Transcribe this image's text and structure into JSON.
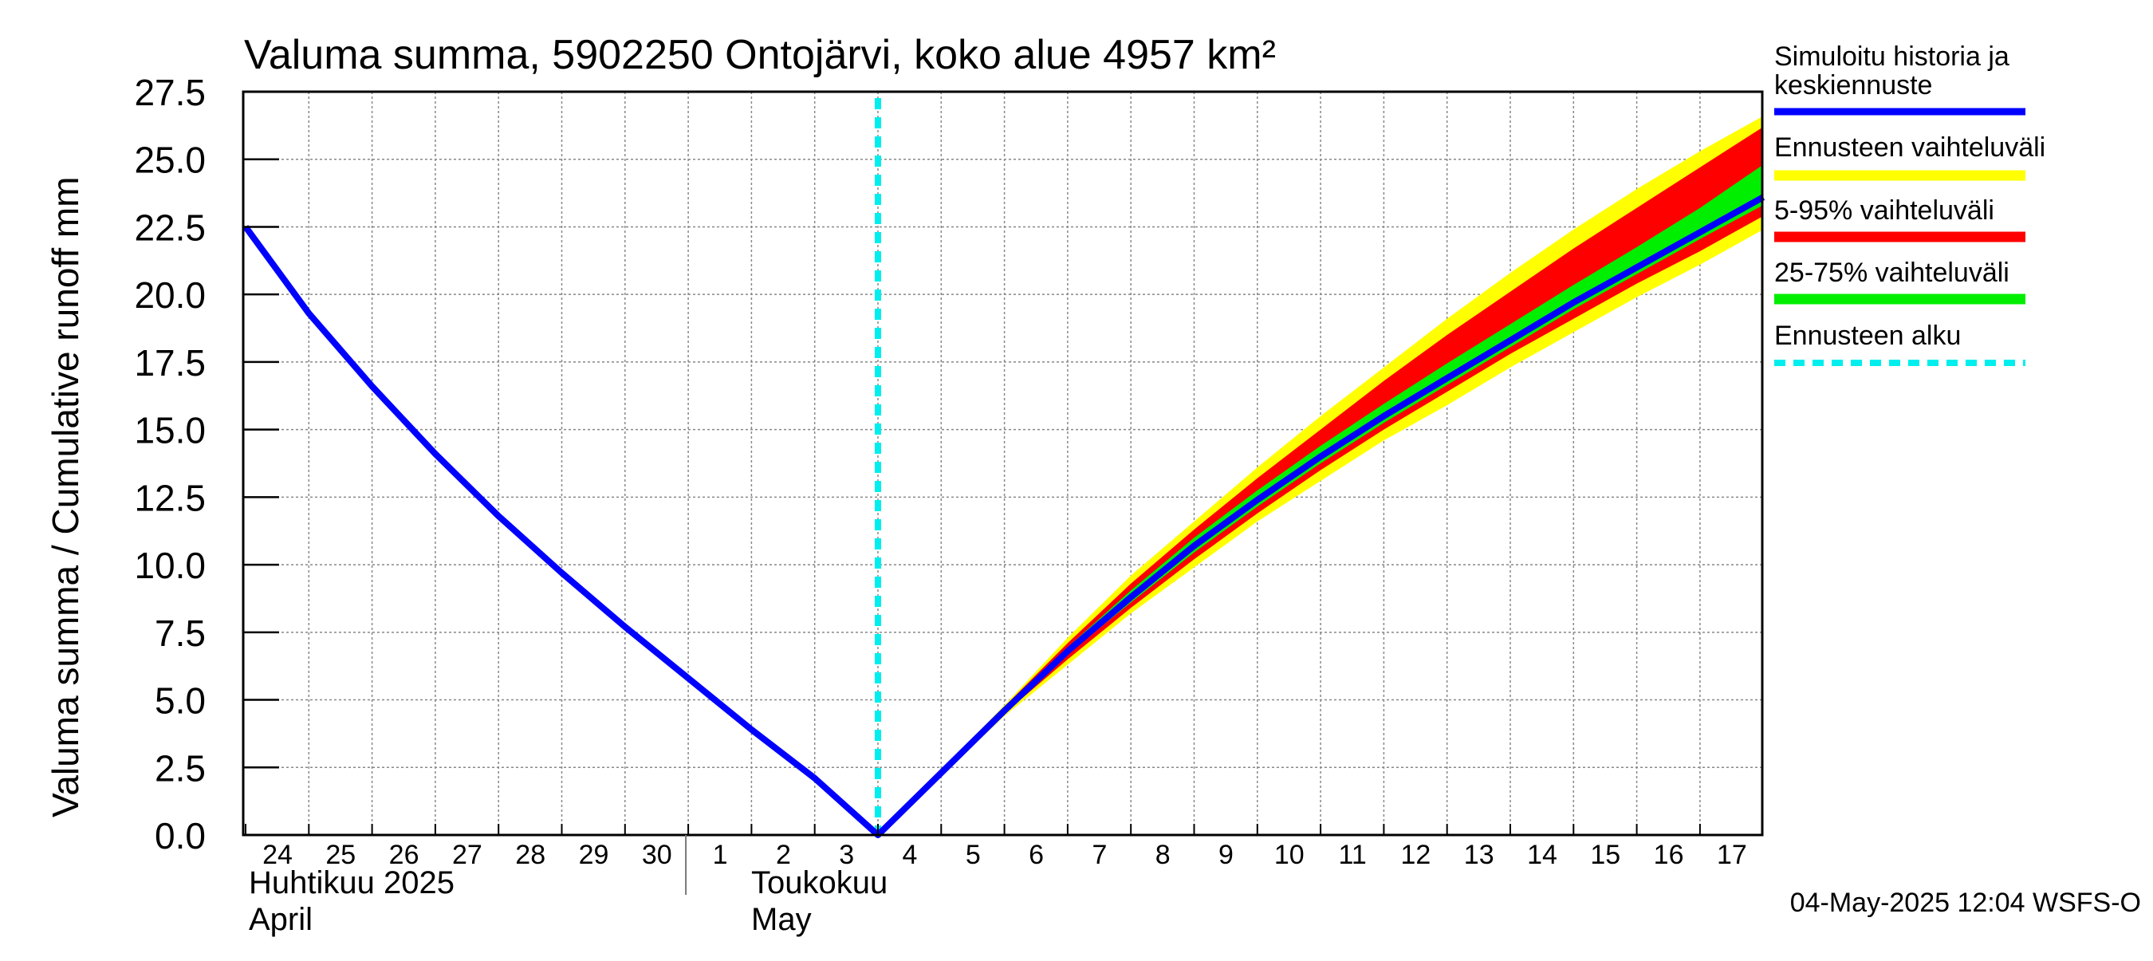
{
  "chart_data": {
    "type": "area",
    "title": "Valuma summa, 5902250 Ontojärvi, koko alue 4957 km²",
    "ylabel": "Valuma summa / Cumulative runoff    mm",
    "ylim": [
      0,
      27.5
    ],
    "yticks": [
      "0.0",
      "2.5",
      "5.0",
      "7.5",
      "10.0",
      "12.5",
      "15.0",
      "17.5",
      "20.0",
      "22.5",
      "25.0",
      "27.5"
    ],
    "x_tick_labels": [
      "24",
      "25",
      "26",
      "27",
      "28",
      "29",
      "30",
      "1",
      "2",
      "3",
      "4",
      "5",
      "6",
      "7",
      "8",
      "9",
      "10",
      "11",
      "12",
      "13",
      "14",
      "15",
      "16",
      "17"
    ],
    "month_labels": [
      {
        "fi": "Huhtikuu  2025",
        "en": "April"
      },
      {
        "fi": "Toukokuu",
        "en": "May"
      }
    ],
    "grid": true,
    "legend_position": "right",
    "forecast_start_day": 10.0,
    "history": {
      "name": "Simuloitu historia ja keskiennuste",
      "x": [
        0,
        1,
        2,
        3,
        4,
        5,
        6,
        7,
        8,
        9,
        10
      ],
      "y": [
        22.5,
        19.3,
        16.6,
        14.1,
        11.8,
        9.7,
        7.7,
        5.8,
        3.9,
        2.1,
        0.0
      ]
    },
    "forecast_x": [
      10,
      11,
      12,
      13,
      14,
      15,
      16,
      17,
      18,
      19,
      20,
      21,
      22,
      23,
      24.0
    ],
    "median": [
      0.0,
      2.3,
      4.6,
      6.8,
      8.8,
      10.7,
      12.4,
      14.0,
      15.5,
      16.9,
      18.3,
      19.7,
      21.0,
      22.3,
      23.6
    ],
    "band_minmax": {
      "name": "Ennusteen vaihteluväli",
      "lower": [
        0.0,
        2.2,
        4.4,
        6.3,
        8.2,
        9.9,
        11.6,
        13.1,
        14.6,
        15.9,
        17.3,
        18.6,
        19.9,
        21.1,
        22.4
      ],
      "upper": [
        0.0,
        2.4,
        4.8,
        7.3,
        9.6,
        11.6,
        13.6,
        15.5,
        17.3,
        19.1,
        20.8,
        22.4,
        23.9,
        25.3,
        26.6
      ]
    },
    "band_5_95": {
      "name": "5-95% vaihteluväli",
      "lower": [
        0.0,
        2.25,
        4.5,
        6.5,
        8.4,
        10.2,
        11.9,
        13.5,
        15.0,
        16.4,
        17.8,
        19.1,
        20.4,
        21.6,
        22.9
      ],
      "upper": [
        0.0,
        2.4,
        4.75,
        7.1,
        9.3,
        11.3,
        13.2,
        15.0,
        16.8,
        18.5,
        20.1,
        21.7,
        23.2,
        24.7,
        26.2
      ]
    },
    "band_25_75": {
      "name": "25-75% vaihteluväli",
      "lower": [
        0.0,
        2.28,
        4.55,
        6.7,
        8.6,
        10.45,
        12.15,
        13.75,
        15.25,
        16.65,
        18.05,
        19.45,
        20.75,
        22.05,
        23.3
      ],
      "upper": [
        0.0,
        2.35,
        4.68,
        6.95,
        9.05,
        11.0,
        12.75,
        14.4,
        15.95,
        17.45,
        18.9,
        20.35,
        21.75,
        23.2,
        24.8
      ]
    },
    "forecast_start_name": "Ennusteen alku",
    "colors": {
      "history": "#0000ff",
      "minmax": "#ffff00",
      "p5_95": "#ff0000",
      "p25_75": "#00ee00",
      "forecast_start": "#00eeee"
    },
    "footer": "04-May-2025 12:04 WSFS-O"
  }
}
